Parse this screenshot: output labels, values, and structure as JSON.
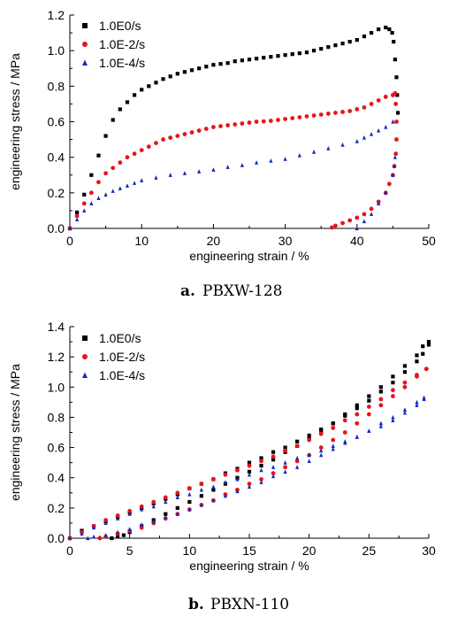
{
  "chart_data": [
    {
      "type": "scatter",
      "caption_letter": "a.",
      "caption_name": "PBXW-128",
      "xlabel": "engineering strain / %",
      "ylabel": "engineering stress / MPa",
      "xlim": [
        0,
        50
      ],
      "ylim": [
        0,
        1.2
      ],
      "x_ticks": [
        "0",
        "10",
        "20",
        "30",
        "40",
        "50"
      ],
      "y_ticks": [
        "0.0",
        "0.2",
        "0.4",
        "0.6",
        "0.8",
        "1.0",
        "1.2"
      ],
      "legend_position": "top-left",
      "series": [
        {
          "name": "1.0E0/s",
          "color": "#000000",
          "marker": "square",
          "x": [
            0,
            1,
            2,
            3,
            4,
            5,
            6,
            7,
            8,
            9,
            10,
            11,
            12,
            13,
            14,
            15,
            16,
            17,
            18,
            19,
            20,
            21,
            22,
            23,
            24,
            25,
            26,
            27,
            28,
            29,
            30,
            31,
            32,
            33,
            34,
            35,
            36,
            37,
            38,
            39,
            40,
            41,
            42,
            43,
            44,
            44.5,
            44.9,
            45.1,
            45.3,
            45.5,
            45.6,
            45.7
          ],
          "y": [
            0,
            0.09,
            0.19,
            0.3,
            0.41,
            0.52,
            0.61,
            0.67,
            0.71,
            0.75,
            0.78,
            0.8,
            0.82,
            0.84,
            0.855,
            0.87,
            0.88,
            0.89,
            0.9,
            0.91,
            0.92,
            0.925,
            0.93,
            0.94,
            0.945,
            0.95,
            0.955,
            0.96,
            0.965,
            0.97,
            0.975,
            0.98,
            0.985,
            0.99,
            1.0,
            1.01,
            1.02,
            1.03,
            1.04,
            1.05,
            1.06,
            1.08,
            1.1,
            1.12,
            1.13,
            1.12,
            1.1,
            1.05,
            0.95,
            0.85,
            0.75,
            0.65
          ]
        },
        {
          "name": "1.0E-2/s",
          "color": "#e8141c",
          "marker": "circle",
          "x": [
            0,
            1,
            2,
            3,
            4,
            5,
            6,
            7,
            8,
            9,
            10,
            11,
            12,
            13,
            14,
            15,
            16,
            17,
            18,
            19,
            20,
            21,
            22,
            23,
            24,
            25,
            26,
            27,
            28,
            29,
            30,
            31,
            32,
            33,
            34,
            35,
            36,
            37,
            38,
            39,
            40,
            41,
            42,
            43,
            44,
            45,
            45.3,
            45.4,
            45.5,
            45.5,
            45.4,
            45.2,
            45.0,
            44.5,
            44.0,
            43.0,
            42.0,
            41.0,
            40.0,
            39.0,
            38.0,
            37.0,
            36.5
          ],
          "y": [
            0,
            0.07,
            0.14,
            0.2,
            0.26,
            0.31,
            0.34,
            0.37,
            0.4,
            0.42,
            0.44,
            0.46,
            0.48,
            0.5,
            0.51,
            0.52,
            0.53,
            0.54,
            0.55,
            0.56,
            0.57,
            0.575,
            0.58,
            0.585,
            0.59,
            0.595,
            0.6,
            0.602,
            0.605,
            0.61,
            0.615,
            0.62,
            0.625,
            0.63,
            0.635,
            0.64,
            0.645,
            0.65,
            0.655,
            0.66,
            0.67,
            0.68,
            0.7,
            0.72,
            0.74,
            0.75,
            0.76,
            0.7,
            0.6,
            0.5,
            0.42,
            0.35,
            0.3,
            0.25,
            0.2,
            0.15,
            0.11,
            0.08,
            0.06,
            0.045,
            0.03,
            0.015,
            0.005
          ]
        },
        {
          "name": "1.0E-4/s",
          "color": "#1428c8",
          "marker": "triangle",
          "x": [
            0,
            1,
            2,
            3,
            4,
            5,
            6,
            7,
            8,
            9,
            10,
            12,
            14,
            16,
            18,
            20,
            22,
            24,
            26,
            28,
            30,
            32,
            34,
            36,
            38,
            40,
            41,
            42,
            43,
            44,
            45,
            45.3,
            45.2,
            45.0,
            44.0,
            43.0,
            42.0,
            41.0,
            40.0
          ],
          "y": [
            0,
            0.05,
            0.1,
            0.14,
            0.17,
            0.19,
            0.21,
            0.225,
            0.24,
            0.255,
            0.27,
            0.285,
            0.3,
            0.31,
            0.32,
            0.33,
            0.345,
            0.355,
            0.37,
            0.38,
            0.39,
            0.41,
            0.43,
            0.45,
            0.47,
            0.49,
            0.51,
            0.53,
            0.55,
            0.57,
            0.6,
            0.4,
            0.35,
            0.3,
            0.2,
            0.14,
            0.08,
            0.04,
            0.0
          ]
        }
      ]
    },
    {
      "type": "scatter",
      "caption_letter": "b.",
      "caption_name": "PBXN-110",
      "xlabel": "engineering strain / %",
      "ylabel": "engineering stress / MPa",
      "xlim": [
        0,
        30
      ],
      "ylim": [
        0,
        1.4
      ],
      "x_ticks": [
        "0",
        "5",
        "10",
        "15",
        "20",
        "25",
        "30"
      ],
      "y_ticks": [
        "0.0",
        "0.2",
        "0.4",
        "0.6",
        "0.8",
        "1.0",
        "1.2",
        "1.4"
      ],
      "legend_position": "top-left",
      "series": [
        {
          "name": "1.0E0/s",
          "color": "#000000",
          "marker": "square",
          "x": [
            0,
            1,
            2,
            3,
            4,
            5,
            6,
            7,
            8,
            9,
            10,
            11,
            12,
            13,
            14,
            15,
            16,
            17,
            18,
            19,
            20,
            21,
            22,
            23,
            24,
            25,
            26,
            27,
            28,
            29,
            29.5,
            30,
            30,
            29.5,
            29,
            28,
            27,
            26,
            25,
            24,
            23,
            22,
            21,
            20,
            19,
            18,
            17,
            16,
            15,
            14,
            13,
            12,
            11,
            10,
            9,
            8,
            7,
            6,
            5,
            4.5,
            4,
            3.5
          ],
          "y": [
            0,
            0.05,
            0.08,
            0.11,
            0.14,
            0.17,
            0.2,
            0.23,
            0.26,
            0.29,
            0.33,
            0.36,
            0.39,
            0.43,
            0.46,
            0.5,
            0.53,
            0.57,
            0.6,
            0.64,
            0.68,
            0.72,
            0.76,
            0.81,
            0.86,
            0.91,
            0.97,
            1.03,
            1.1,
            1.17,
            1.22,
            1.28,
            1.3,
            1.27,
            1.21,
            1.14,
            1.07,
            1.0,
            0.94,
            0.88,
            0.82,
            0.76,
            0.71,
            0.66,
            0.61,
            0.57,
            0.52,
            0.48,
            0.44,
            0.4,
            0.36,
            0.32,
            0.28,
            0.24,
            0.2,
            0.16,
            0.12,
            0.08,
            0.04,
            0.02,
            0.01,
            0.0
          ]
        },
        {
          "name": "1.0E-2/s",
          "color": "#e8141c",
          "marker": "circle",
          "x": [
            0,
            1,
            2,
            3,
            4,
            5,
            6,
            7,
            8,
            9,
            10,
            11,
            12,
            13,
            14,
            15,
            16,
            17,
            18,
            19,
            20,
            21,
            22,
            23,
            24,
            25,
            26,
            27,
            28,
            29,
            29.8,
            29.8,
            29,
            28,
            27,
            26,
            25,
            24,
            23,
            22,
            21,
            20,
            19,
            18,
            17,
            16,
            15,
            14,
            13,
            12,
            11,
            10,
            9,
            8,
            7,
            6,
            5,
            4,
            3,
            2.5
          ],
          "y": [
            0,
            0.04,
            0.08,
            0.12,
            0.15,
            0.18,
            0.21,
            0.24,
            0.27,
            0.3,
            0.33,
            0.36,
            0.39,
            0.42,
            0.45,
            0.48,
            0.51,
            0.54,
            0.58,
            0.61,
            0.65,
            0.69,
            0.73,
            0.78,
            0.82,
            0.87,
            0.92,
            0.98,
            1.03,
            1.08,
            1.12,
            1.12,
            1.07,
            1.0,
            0.94,
            0.88,
            0.82,
            0.76,
            0.7,
            0.65,
            0.6,
            0.55,
            0.51,
            0.47,
            0.43,
            0.39,
            0.36,
            0.32,
            0.29,
            0.25,
            0.22,
            0.19,
            0.16,
            0.13,
            0.1,
            0.07,
            0.05,
            0.03,
            0.01,
            0.0
          ]
        },
        {
          "name": "1.0E-4/s",
          "color": "#1428c8",
          "marker": "triangle",
          "x": [
            0,
            1,
            2,
            3,
            4,
            5,
            6,
            7,
            8,
            9,
            10,
            11,
            12,
            13,
            14,
            15,
            16,
            17,
            18,
            19,
            20,
            21,
            22,
            23,
            24,
            25,
            26,
            27,
            28,
            29,
            29.6,
            29.6,
            29,
            28,
            27,
            26,
            25,
            24,
            23,
            22,
            21,
            20,
            19,
            18,
            17,
            16,
            15,
            14,
            13,
            12,
            11,
            10,
            9,
            8,
            7,
            6,
            5,
            4,
            3,
            2,
            1.5
          ],
          "y": [
            0,
            0.03,
            0.07,
            0.1,
            0.13,
            0.16,
            0.19,
            0.21,
            0.24,
            0.27,
            0.29,
            0.32,
            0.34,
            0.37,
            0.39,
            0.42,
            0.45,
            0.47,
            0.5,
            0.53,
            0.55,
            0.58,
            0.61,
            0.64,
            0.67,
            0.71,
            0.74,
            0.78,
            0.83,
            0.88,
            0.92,
            0.93,
            0.9,
            0.85,
            0.8,
            0.76,
            0.71,
            0.67,
            0.63,
            0.59,
            0.55,
            0.51,
            0.47,
            0.44,
            0.41,
            0.37,
            0.34,
            0.31,
            0.28,
            0.25,
            0.22,
            0.19,
            0.16,
            0.14,
            0.11,
            0.09,
            0.06,
            0.04,
            0.02,
            0.01,
            0.0
          ]
        }
      ]
    }
  ]
}
